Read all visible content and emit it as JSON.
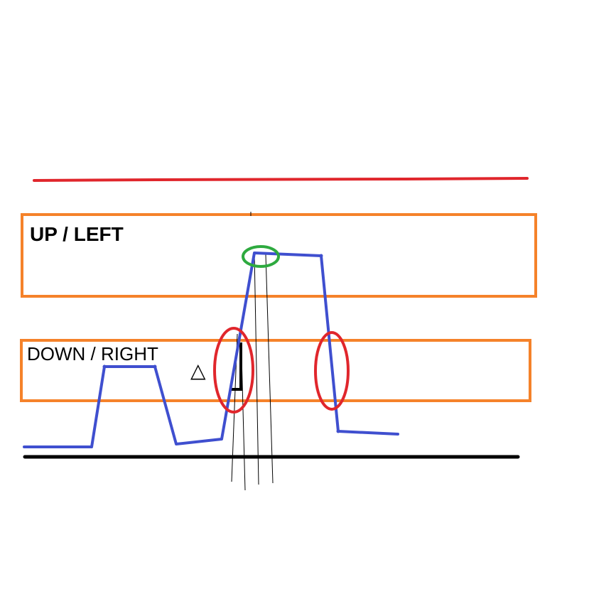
{
  "zones": {
    "upper_label": "UP / LEFT",
    "lower_label": "DOWN / RIGHT"
  },
  "annotations": {
    "delta_symbol": "△"
  },
  "colors": {
    "threshold_line": "#e0262c",
    "baseline": "#000000",
    "zone_border": "#f5822a",
    "signal_trace": "#3f4fcf",
    "rising_edge_marker": "#e0262c",
    "falling_edge_marker": "#e0262c",
    "peak_marker": "#2eaa3f",
    "guide_lines": "#000000",
    "step_marker": "#000000"
  }
}
